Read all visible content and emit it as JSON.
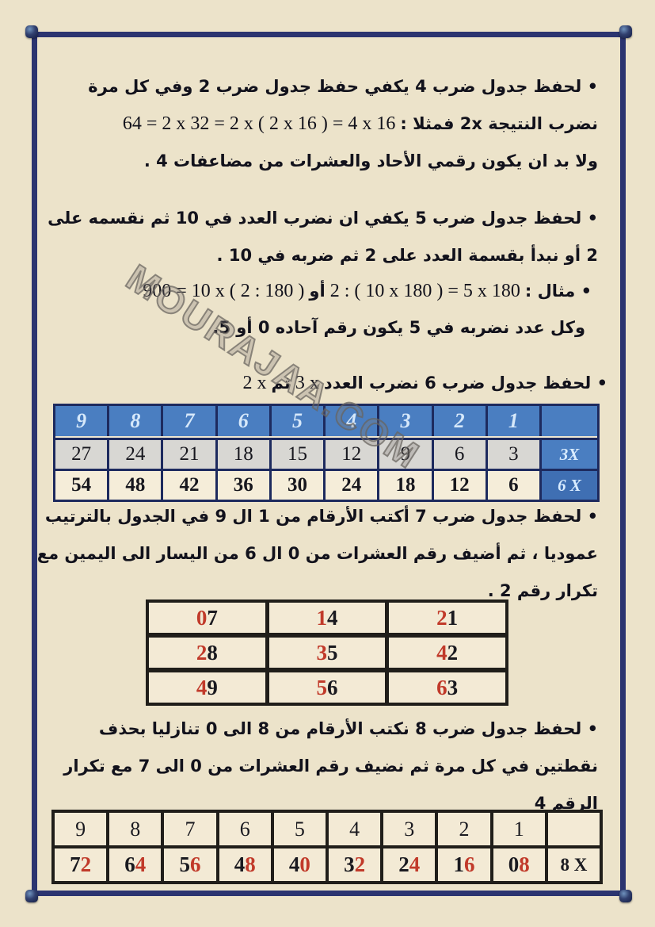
{
  "colors": {
    "page_bg": "#ece3ca",
    "frame_navy": "#2b3470",
    "frame_light_stripe": "#cde9e3",
    "table_header_blue": "#4a7ec1",
    "table_navy_border": "#1d2a5e",
    "gray_row": "#d8d7d3",
    "cream_cell": "#f3ead5",
    "digit_red": "#c13a2a",
    "ink": "#12121c"
  },
  "watermark": "MOURAJAA.COM",
  "sections": {
    "mul4": {
      "lines": [
        [
          {
            "t": "• لحفظ جدول ضرب 4  يكفي حفظ جدول ضرب 2 وفي كل مرة",
            "d": "rtl"
          }
        ],
        [
          {
            "t": "نضرب النتيجة 2x فمثلا :",
            "d": "rtl"
          },
          {
            "t": "64 = 2 x 32 = 2 x ( 2 x 16 ) = 4  x  16",
            "d": "ltr"
          }
        ],
        [
          {
            "t": "ولا بد ان يكون رقمي الأحاد والعشرات من مضاعفات 4 .",
            "d": "rtl"
          }
        ]
      ]
    },
    "mul5": {
      "lines": [
        [
          {
            "t": "• لحفظ جدول ضرب 5 يكفي ان نضرب العدد في 10 ثم نقسمه على",
            "d": "rtl"
          }
        ],
        [
          {
            "t": "2 أو نبدأ بقسمة العدد على 2 ثم ضربه في 10 .",
            "d": "rtl"
          }
        ]
      ]
    },
    "example5": {
      "lines": [
        [
          {
            "t": "• مثال :",
            "d": "rtl"
          },
          {
            "t": "2 : ( 10 x 180 ) = 5 x 180",
            "d": "ltr"
          },
          {
            "t": "أو",
            "d": "rtl"
          },
          {
            "t": "900 = 10 x ( 2 : 180 )",
            "d": "ltr"
          }
        ]
      ]
    },
    "note5": {
      "lines": [
        [
          {
            "t": "وكل عدد نضربه في 5 يكون رقم آحاده 0 أو 5.",
            "d": "rtl"
          }
        ]
      ]
    },
    "mul6": {
      "lines": [
        [
          {
            "t": "• لحفظ جدول ضرب 6 نضرب العدد",
            "d": "rtl"
          },
          {
            "t": "3 x",
            "d": "ltr"
          },
          {
            "t": "ثم",
            "d": "rtl"
          },
          {
            "t": "2 x",
            "d": "ltr"
          }
        ]
      ]
    },
    "mul7": {
      "lines": [
        [
          {
            "t": "• لحفظ جدول ضرب 7  أكتب الأرقام من 1 ال 9 في الجدول بالترتيب",
            "d": "rtl"
          }
        ],
        [
          {
            "t": "عموديا ، ثم أضيف رقم العشرات من 0 ال 6 من اليسار الى اليمين مع",
            "d": "rtl"
          }
        ],
        [
          {
            "t": "تكرار رقم 2 .",
            "d": "rtl"
          }
        ]
      ]
    },
    "mul8": {
      "lines": [
        [
          {
            "t": "• لحفظ جدول ضرب 8   نكتب الأرقام من 8 الى 0 تنازليا بحذف",
            "d": "rtl"
          }
        ],
        [
          {
            "t": "نقطتين في كل مرة  ثم نضيف رقم العشرات من 0 الى 7 مع تكرار",
            "d": "rtl"
          }
        ],
        [
          {
            "t": "الرقم 4",
            "d": "rtl"
          }
        ]
      ]
    }
  },
  "tables": {
    "three_six": {
      "header": [
        "9",
        "8",
        "7",
        "6",
        "5",
        "4",
        "3",
        "2",
        "1",
        ""
      ],
      "rows": [
        {
          "label": "3X",
          "values": [
            "27",
            "24",
            "21",
            "18",
            "15",
            "12",
            "9",
            "6",
            "3"
          ]
        },
        {
          "label": "6 X",
          "values": [
            "54",
            "48",
            "42",
            "36",
            "30",
            "24",
            "18",
            "12",
            "6"
          ]
        }
      ]
    },
    "seven": {
      "rows": [
        [
          [
            [
              "0",
              1
            ],
            [
              "7",
              0
            ]
          ],
          [
            [
              "1",
              1
            ],
            [
              "4",
              0
            ]
          ],
          [
            [
              "2",
              1
            ],
            [
              "1",
              0
            ]
          ]
        ],
        [
          [
            [
              "2",
              1
            ],
            [
              "8",
              0
            ]
          ],
          [
            [
              "3",
              1
            ],
            [
              "5",
              0
            ]
          ],
          [
            [
              "4",
              1
            ],
            [
              "2",
              0
            ]
          ]
        ],
        [
          [
            [
              "4",
              1
            ],
            [
              "9",
              0
            ]
          ],
          [
            [
              "5",
              1
            ],
            [
              "6",
              0
            ]
          ],
          [
            [
              "6",
              1
            ],
            [
              "3",
              0
            ]
          ]
        ]
      ]
    },
    "eight": {
      "top": [
        "9",
        "8",
        "7",
        "6",
        "5",
        "4",
        "3",
        "2",
        "1",
        ""
      ],
      "bottom": [
        [
          [
            "7",
            0
          ],
          [
            "2",
            1
          ]
        ],
        [
          [
            "6",
            0
          ],
          [
            "4",
            1
          ]
        ],
        [
          [
            "5",
            0
          ],
          [
            "6",
            1
          ]
        ],
        [
          [
            "4",
            0
          ],
          [
            "8",
            1
          ]
        ],
        [
          [
            "4",
            0
          ],
          [
            "0",
            1
          ]
        ],
        [
          [
            "3",
            0
          ],
          [
            "2",
            1
          ]
        ],
        [
          [
            "2",
            0
          ],
          [
            "4",
            1
          ]
        ],
        [
          [
            "1",
            0
          ],
          [
            "6",
            1
          ]
        ],
        [
          [
            "0",
            0
          ],
          [
            "8",
            1
          ]
        ]
      ],
      "label": "8 X"
    }
  }
}
